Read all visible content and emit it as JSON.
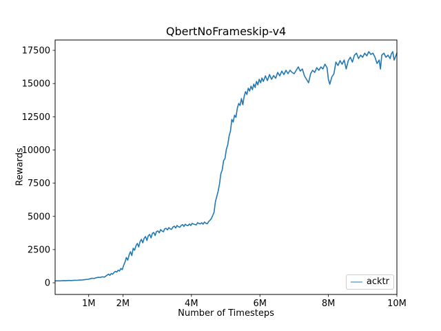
{
  "chart_data": {
    "type": "line",
    "title": "QbertNoFrameskip-v4",
    "xlabel": "Number of Timesteps",
    "ylabel": "Rewards",
    "x_unit": "millions_of_timesteps",
    "xlim": [
      0.02,
      10
    ],
    "ylim": [
      -880,
      18280
    ],
    "grid": false,
    "xticks": [
      {
        "value": 1,
        "label": "1M"
      },
      {
        "value": 2,
        "label": "2M"
      },
      {
        "value": 4,
        "label": "4M"
      },
      {
        "value": 6,
        "label": "6M"
      },
      {
        "value": 8,
        "label": "8M"
      },
      {
        "value": 10,
        "label": "10M"
      }
    ],
    "yticks": [
      {
        "value": 0,
        "label": "0"
      },
      {
        "value": 2500,
        "label": "2500"
      },
      {
        "value": 5000,
        "label": "5000"
      },
      {
        "value": 7500,
        "label": "7500"
      },
      {
        "value": 10000,
        "label": "10000"
      },
      {
        "value": 12500,
        "label": "12500"
      },
      {
        "value": 15000,
        "label": "15000"
      },
      {
        "value": 17500,
        "label": "17500"
      }
    ],
    "legend": {
      "position": "lower right",
      "entries": [
        {
          "label": "acktr",
          "color": "#1f77b4"
        }
      ]
    },
    "series": [
      {
        "name": "acktr",
        "color": "#1f77b4",
        "data": [
          [
            0.02,
            140
          ],
          [
            0.1,
            150
          ],
          [
            0.18,
            145
          ],
          [
            0.26,
            162
          ],
          [
            0.34,
            155
          ],
          [
            0.42,
            172
          ],
          [
            0.5,
            168
          ],
          [
            0.58,
            188
          ],
          [
            0.66,
            182
          ],
          [
            0.74,
            205
          ],
          [
            0.82,
            218
          ],
          [
            0.9,
            240
          ],
          [
            0.98,
            262
          ],
          [
            1.04,
            300
          ],
          [
            1.1,
            340
          ],
          [
            1.16,
            325
          ],
          [
            1.22,
            375
          ],
          [
            1.28,
            415
          ],
          [
            1.34,
            395
          ],
          [
            1.4,
            450
          ],
          [
            1.46,
            430
          ],
          [
            1.52,
            540
          ],
          [
            1.58,
            650
          ],
          [
            1.62,
            560
          ],
          [
            1.66,
            700
          ],
          [
            1.7,
            640
          ],
          [
            1.74,
            780
          ],
          [
            1.78,
            860
          ],
          [
            1.82,
            800
          ],
          [
            1.86,
            950
          ],
          [
            1.9,
            880
          ],
          [
            1.94,
            1080
          ],
          [
            1.98,
            990
          ],
          [
            2.02,
            1300
          ],
          [
            2.06,
            1560
          ],
          [
            2.1,
            1900
          ],
          [
            2.14,
            1700
          ],
          [
            2.18,
            2100
          ],
          [
            2.22,
            2340
          ],
          [
            2.26,
            2050
          ],
          [
            2.3,
            2600
          ],
          [
            2.34,
            2450
          ],
          [
            2.38,
            2780
          ],
          [
            2.42,
            2960
          ],
          [
            2.46,
            2700
          ],
          [
            2.5,
            3100
          ],
          [
            2.54,
            3270
          ],
          [
            2.58,
            3010
          ],
          [
            2.62,
            3350
          ],
          [
            2.66,
            3480
          ],
          [
            2.7,
            3180
          ],
          [
            2.74,
            3540
          ],
          [
            2.78,
            3640
          ],
          [
            2.82,
            3380
          ],
          [
            2.86,
            3720
          ],
          [
            2.9,
            3790
          ],
          [
            2.94,
            3560
          ],
          [
            2.98,
            3860
          ],
          [
            3.02,
            3900
          ],
          [
            3.06,
            3760
          ],
          [
            3.1,
            4000
          ],
          [
            3.14,
            3900
          ],
          [
            3.18,
            3840
          ],
          [
            3.22,
            4060
          ],
          [
            3.26,
            4100
          ],
          [
            3.3,
            3980
          ],
          [
            3.34,
            4150
          ],
          [
            3.38,
            4060
          ],
          [
            3.42,
            4020
          ],
          [
            3.46,
            4200
          ],
          [
            3.5,
            4260
          ],
          [
            3.54,
            4120
          ],
          [
            3.58,
            4310
          ],
          [
            3.62,
            4220
          ],
          [
            3.66,
            4180
          ],
          [
            3.7,
            4310
          ],
          [
            3.74,
            4380
          ],
          [
            3.78,
            4240
          ],
          [
            3.82,
            4410
          ],
          [
            3.86,
            4330
          ],
          [
            3.9,
            4300
          ],
          [
            3.94,
            4420
          ],
          [
            3.98,
            4310
          ],
          [
            4.02,
            4470
          ],
          [
            4.06,
            4420
          ],
          [
            4.1,
            4390
          ],
          [
            4.14,
            4360
          ],
          [
            4.18,
            4520
          ],
          [
            4.22,
            4460
          ],
          [
            4.26,
            4430
          ],
          [
            4.3,
            4520
          ],
          [
            4.34,
            4410
          ],
          [
            4.38,
            4570
          ],
          [
            4.42,
            4480
          ],
          [
            4.46,
            4440
          ],
          [
            4.5,
            4600
          ],
          [
            4.54,
            4700
          ],
          [
            4.58,
            4820
          ],
          [
            4.62,
            5050
          ],
          [
            4.66,
            5300
          ],
          [
            4.7,
            6100
          ],
          [
            4.74,
            6500
          ],
          [
            4.78,
            6900
          ],
          [
            4.82,
            7450
          ],
          [
            4.86,
            8200
          ],
          [
            4.9,
            8500
          ],
          [
            4.94,
            9200
          ],
          [
            4.98,
            9350
          ],
          [
            5.02,
            10050
          ],
          [
            5.06,
            10380
          ],
          [
            5.1,
            11050
          ],
          [
            5.14,
            11430
          ],
          [
            5.18,
            12300
          ],
          [
            5.22,
            12100
          ],
          [
            5.26,
            12620
          ],
          [
            5.3,
            12460
          ],
          [
            5.34,
            13140
          ],
          [
            5.38,
            13500
          ],
          [
            5.42,
            13350
          ],
          [
            5.46,
            13870
          ],
          [
            5.5,
            13400
          ],
          [
            5.54,
            14020
          ],
          [
            5.58,
            14390
          ],
          [
            5.62,
            14180
          ],
          [
            5.66,
            14650
          ],
          [
            5.7,
            14440
          ],
          [
            5.74,
            14800
          ],
          [
            5.78,
            14540
          ],
          [
            5.82,
            14960
          ],
          [
            5.86,
            14700
          ],
          [
            5.9,
            15160
          ],
          [
            5.94,
            14900
          ],
          [
            5.98,
            15320
          ],
          [
            6.02,
            15060
          ],
          [
            6.06,
            15420
          ],
          [
            6.1,
            15160
          ],
          [
            6.16,
            15580
          ],
          [
            6.22,
            15220
          ],
          [
            6.28,
            15680
          ],
          [
            6.34,
            15320
          ],
          [
            6.4,
            15600
          ],
          [
            6.46,
            15400
          ],
          [
            6.52,
            15840
          ],
          [
            6.58,
            15580
          ],
          [
            6.64,
            15940
          ],
          [
            6.7,
            15680
          ],
          [
            6.76,
            16000
          ],
          [
            6.82,
            15740
          ],
          [
            6.88,
            16000
          ],
          [
            6.94,
            15840
          ],
          [
            7.0,
            15740
          ],
          [
            7.06,
            16000
          ],
          [
            7.12,
            16250
          ],
          [
            7.18,
            15940
          ],
          [
            7.24,
            16100
          ],
          [
            7.3,
            15580
          ],
          [
            7.36,
            15320
          ],
          [
            7.42,
            15060
          ],
          [
            7.48,
            15740
          ],
          [
            7.54,
            16000
          ],
          [
            7.6,
            15840
          ],
          [
            7.66,
            16200
          ],
          [
            7.72,
            16000
          ],
          [
            7.78,
            16250
          ],
          [
            7.84,
            16100
          ],
          [
            7.9,
            16460
          ],
          [
            7.96,
            16200
          ],
          [
            8.0,
            15320
          ],
          [
            8.04,
            14950
          ],
          [
            8.1,
            15500
          ],
          [
            8.16,
            15740
          ],
          [
            8.22,
            16620
          ],
          [
            8.28,
            16360
          ],
          [
            8.34,
            16720
          ],
          [
            8.4,
            16460
          ],
          [
            8.46,
            16770
          ],
          [
            8.52,
            16100
          ],
          [
            8.58,
            16720
          ],
          [
            8.64,
            16980
          ],
          [
            8.7,
            16620
          ],
          [
            8.76,
            17140
          ],
          [
            8.82,
            17290
          ],
          [
            8.88,
            16880
          ],
          [
            8.94,
            17140
          ],
          [
            9.0,
            16980
          ],
          [
            9.06,
            17290
          ],
          [
            9.12,
            17085
          ],
          [
            9.18,
            17400
          ],
          [
            9.24,
            17190
          ],
          [
            9.3,
            17290
          ],
          [
            9.36,
            16980
          ],
          [
            9.42,
            16510
          ],
          [
            9.48,
            16770
          ],
          [
            9.52,
            16100
          ],
          [
            9.56,
            17140
          ],
          [
            9.62,
            17290
          ],
          [
            9.68,
            16980
          ],
          [
            9.74,
            17140
          ],
          [
            9.8,
            16880
          ],
          [
            9.84,
            17240
          ],
          [
            9.88,
            17400
          ],
          [
            9.92,
            16770
          ],
          [
            9.96,
            17030
          ],
          [
            10.0,
            17310
          ]
        ]
      }
    ]
  },
  "colors": {
    "background": "#ffffff",
    "spine": "#000000",
    "legend_border": "#cccccc",
    "accent": "#1f77b4"
  }
}
